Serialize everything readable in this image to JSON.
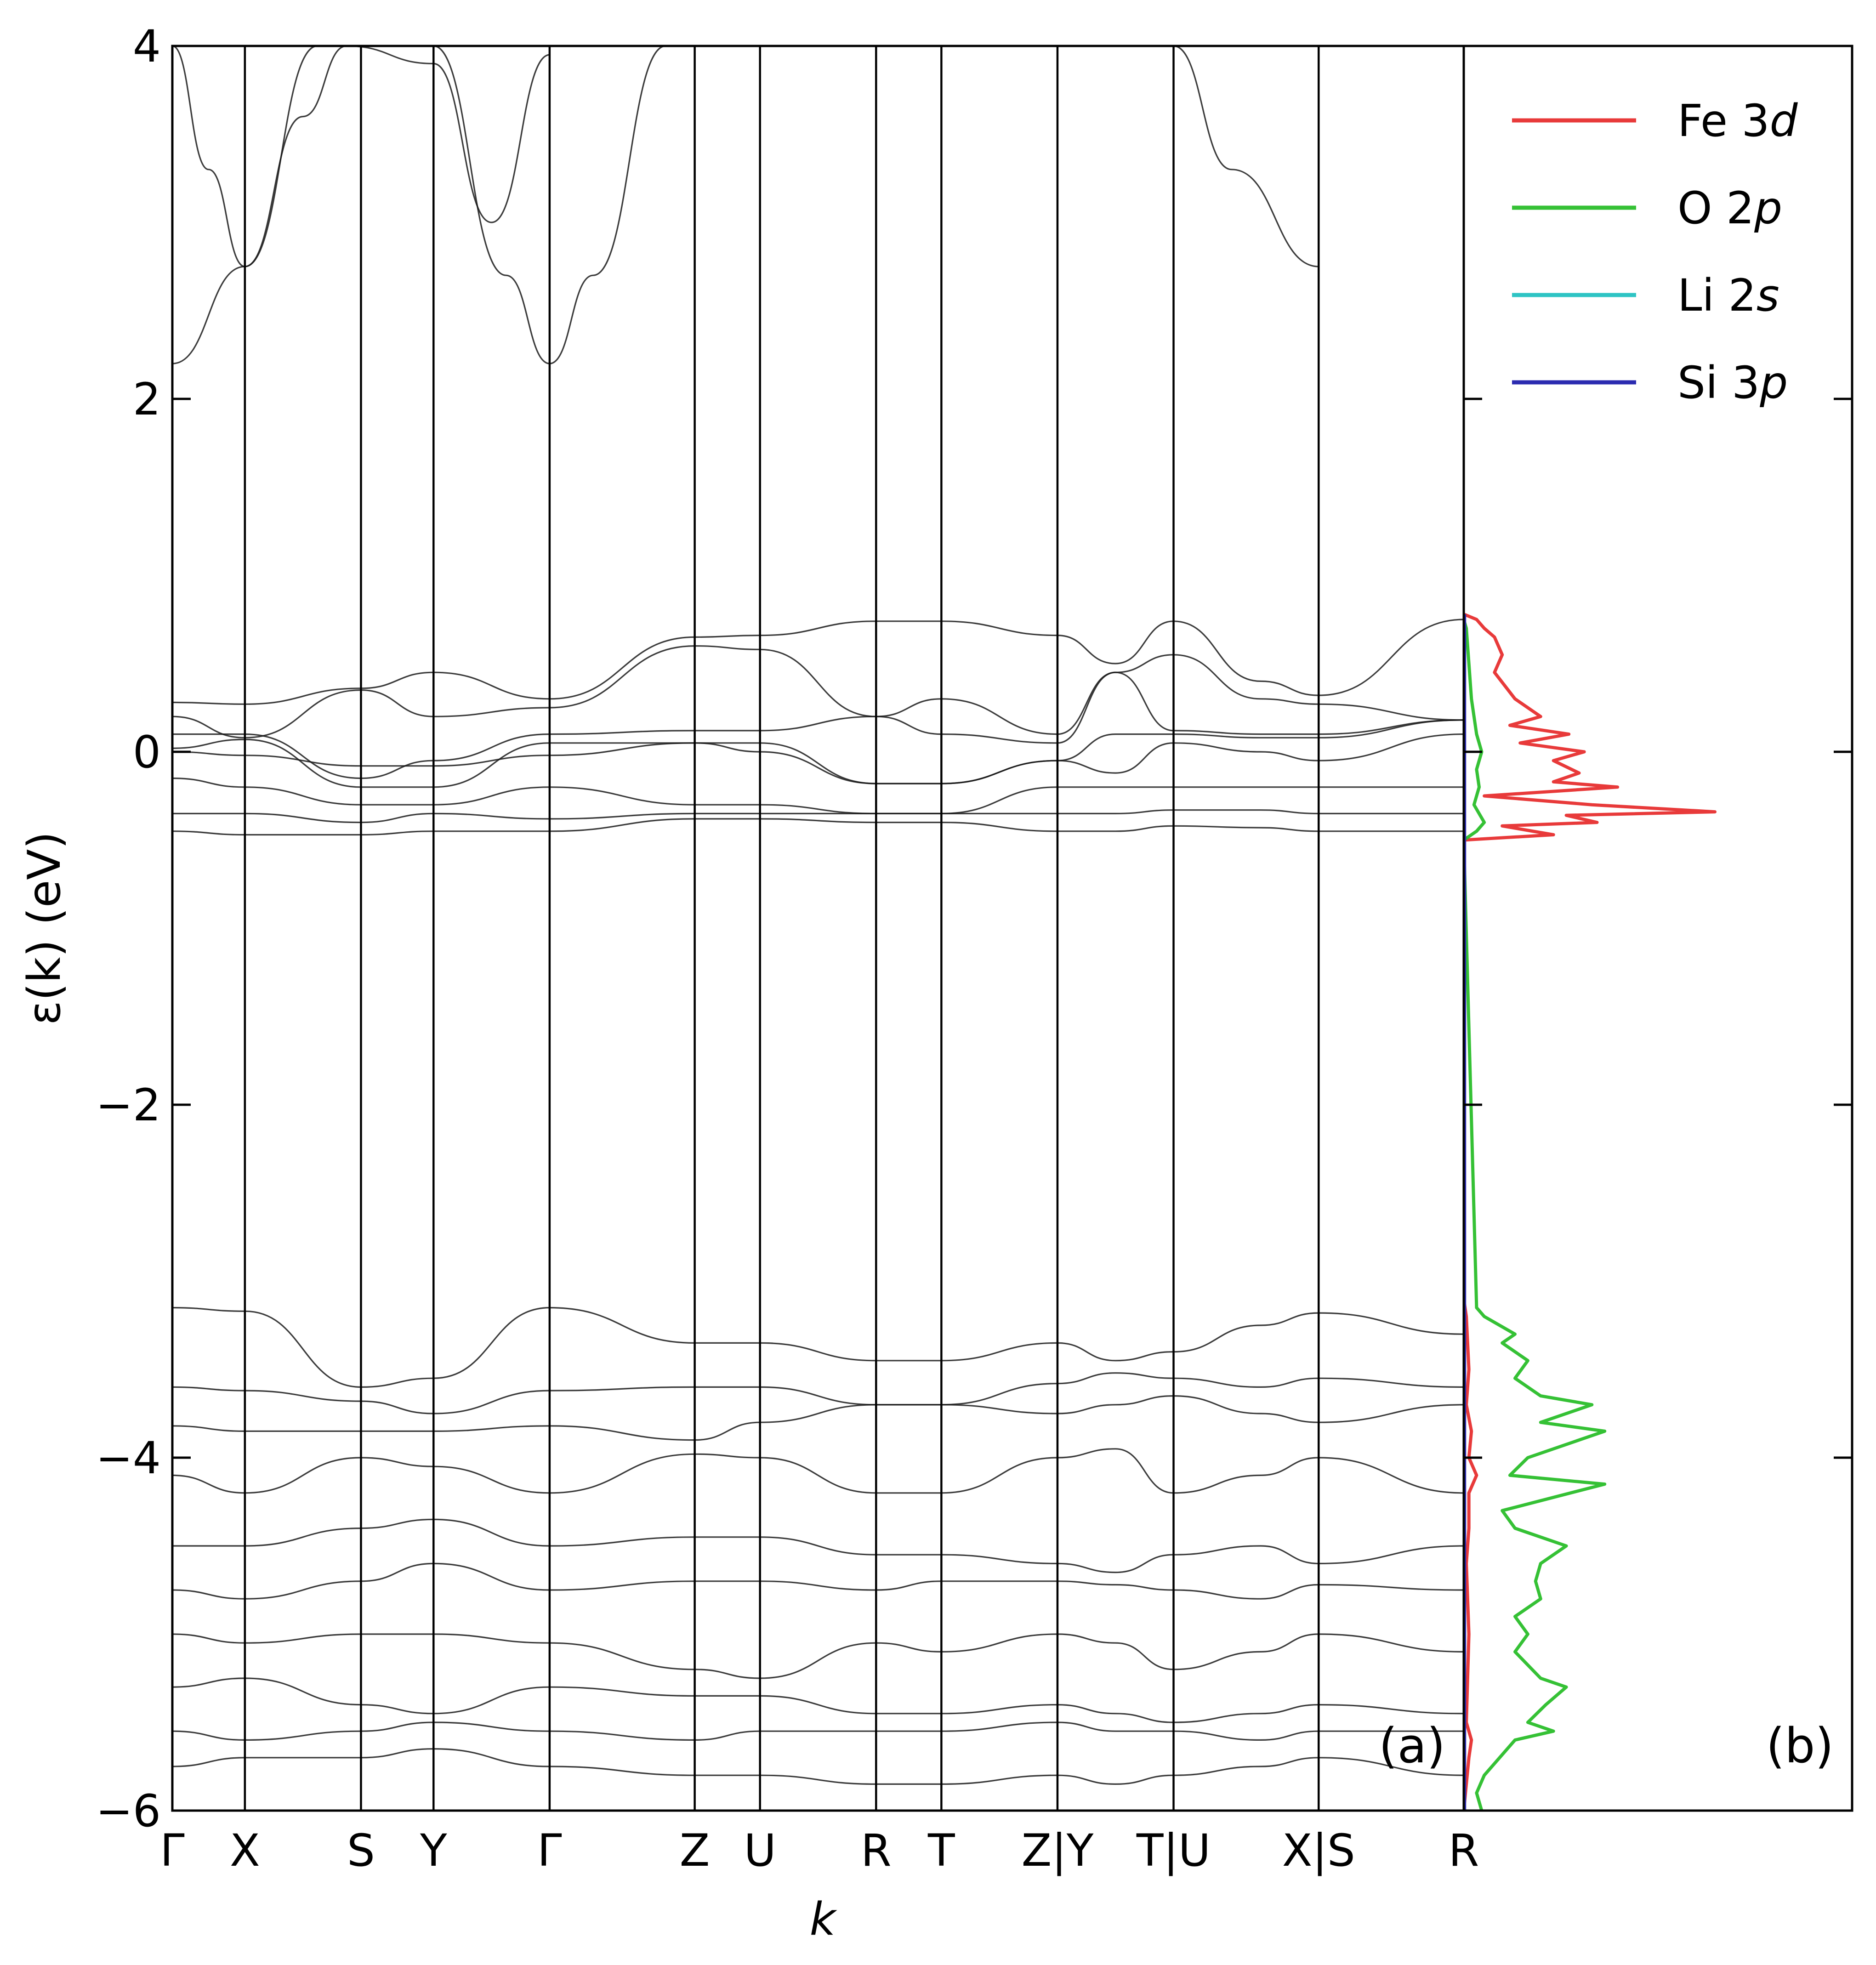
{
  "chart_data": [
    {
      "panel": "(a)",
      "type": "line",
      "title": "",
      "xlabel": "k",
      "ylabel": "ε(k) (eV)",
      "ylim": [
        -6,
        4
      ],
      "yticks": [
        -6,
        -4,
        -2,
        0,
        2,
        4
      ],
      "ytick_labels": [
        "−6",
        "−4",
        "−2",
        "0",
        "2",
        "4"
      ],
      "kpath": [
        {
          "label": "Γ",
          "k": 0.0
        },
        {
          "label": "X",
          "k": 0.5
        },
        {
          "label": "S",
          "k": 1.3
        },
        {
          "label": "Y",
          "k": 1.8
        },
        {
          "label": "Γ",
          "k": 2.6
        },
        {
          "label": "Z",
          "k": 3.6
        },
        {
          "label": "U",
          "k": 4.05
        },
        {
          "label": "R",
          "k": 4.85
        },
        {
          "label": "T",
          "k": 5.3
        },
        {
          "label": "Z|Y",
          "k": 6.1
        },
        {
          "label": "T|U",
          "k": 6.9
        },
        {
          "label": "X|S",
          "k": 7.9
        },
        {
          "label": "R",
          "k": 8.9
        }
      ],
      "bands_note": "dense band manifolds: conduction parabolas above 2.2 eV, Fe 3d manifold from -0.5 to 0.75 eV, O 2p manifold from -6 to -3.1 eV",
      "series": [
        {
          "name": "cb1",
          "k": [
            0,
            0.5,
            1.0,
            1.8,
            2.3,
            2.6,
            2.9,
            3.4,
            6.9,
            7.3,
            7.9
          ],
          "e": [
            2.2,
            2.75,
            4.0,
            4.0,
            2.7,
            2.2,
            2.7,
            4.0,
            4.0,
            3.3,
            2.75
          ]
        },
        {
          "name": "cb2",
          "k": [
            0,
            0.25,
            0.5,
            0.9,
            1.2,
            1.8,
            2.2,
            2.6
          ],
          "e": [
            4.0,
            3.3,
            2.75,
            3.6,
            4.0,
            3.9,
            3.0,
            3.95
          ]
        },
        {
          "name": "d1",
          "k": [
            0,
            0.5,
            1.3,
            1.8,
            2.6,
            3.6,
            4.05,
            4.85,
            5.3,
            6.1,
            6.5,
            6.9,
            7.5,
            7.9,
            8.9
          ],
          "e": [
            0.28,
            0.27,
            0.36,
            0.45,
            0.3,
            0.65,
            0.66,
            0.74,
            0.74,
            0.66,
            0.5,
            0.74,
            0.4,
            0.32,
            0.75
          ]
        },
        {
          "name": "d2",
          "k": [
            0,
            0.5,
            1.3,
            1.8,
            2.6,
            3.6,
            4.05,
            4.85,
            5.3,
            6.1,
            6.5,
            6.9,
            7.5,
            7.9,
            8.9
          ],
          "e": [
            0.2,
            0.08,
            0.35,
            0.2,
            0.25,
            0.6,
            0.58,
            0.2,
            0.3,
            0.1,
            0.45,
            0.55,
            0.3,
            0.27,
            0.18
          ]
        },
        {
          "name": "d3",
          "k": [
            0,
            0.5,
            1.3,
            1.8,
            2.6,
            3.6,
            4.05,
            4.85,
            5.3,
            6.1,
            6.5,
            6.9,
            7.5,
            7.9,
            8.9
          ],
          "e": [
            0.1,
            0.1,
            -0.15,
            -0.05,
            0.1,
            0.12,
            0.12,
            0.2,
            0.1,
            0.05,
            0.45,
            0.12,
            0.1,
            0.1,
            0.18
          ]
        },
        {
          "name": "d4",
          "k": [
            0,
            0.5,
            1.3,
            1.8,
            2.6,
            3.6,
            4.05,
            4.85,
            5.3,
            6.1,
            6.5,
            6.9,
            7.5,
            7.9,
            8.9
          ],
          "e": [
            0.02,
            0.07,
            -0.2,
            -0.2,
            0.05,
            0.05,
            0.05,
            -0.18,
            -0.18,
            -0.05,
            0.1,
            0.1,
            0.08,
            0.08,
            0.18
          ]
        },
        {
          "name": "d5",
          "k": [
            0,
            0.5,
            1.3,
            1.8,
            2.6,
            3.6,
            4.05,
            4.85,
            5.3,
            6.1,
            6.5,
            6.9,
            7.5,
            7.9,
            8.9
          ],
          "e": [
            0.0,
            -0.02,
            -0.08,
            -0.08,
            -0.02,
            0.05,
            0.0,
            -0.18,
            -0.18,
            -0.05,
            -0.12,
            0.05,
            0.0,
            -0.05,
            0.1
          ]
        },
        {
          "name": "d6",
          "k": [
            0,
            0.5,
            1.3,
            1.8,
            2.6,
            3.6,
            4.05,
            4.85,
            5.3,
            6.1,
            6.5,
            6.9,
            7.5,
            7.9,
            8.9
          ],
          "e": [
            -0.15,
            -0.2,
            -0.3,
            -0.3,
            -0.2,
            -0.3,
            -0.3,
            -0.35,
            -0.35,
            -0.2,
            -0.2,
            -0.2,
            -0.2,
            -0.2,
            -0.2
          ]
        },
        {
          "name": "d7",
          "k": [
            0,
            0.5,
            1.3,
            1.8,
            2.6,
            3.6,
            4.05,
            4.85,
            5.3,
            6.1,
            6.5,
            6.9,
            7.5,
            7.9,
            8.9
          ],
          "e": [
            -0.35,
            -0.35,
            -0.4,
            -0.35,
            -0.38,
            -0.35,
            -0.35,
            -0.35,
            -0.35,
            -0.35,
            -0.35,
            -0.33,
            -0.33,
            -0.35,
            -0.35
          ]
        },
        {
          "name": "d8",
          "k": [
            0,
            0.5,
            1.3,
            1.8,
            2.6,
            3.6,
            4.05,
            4.85,
            5.3,
            6.1,
            6.5,
            6.9,
            7.5,
            7.9,
            8.9
          ],
          "e": [
            -0.45,
            -0.47,
            -0.47,
            -0.45,
            -0.45,
            -0.38,
            -0.38,
            -0.4,
            -0.4,
            -0.45,
            -0.45,
            -0.42,
            -0.43,
            -0.45,
            -0.45
          ]
        },
        {
          "name": "p1",
          "k": [
            0,
            0.5,
            1.3,
            1.8,
            2.6,
            3.6,
            4.05,
            4.85,
            5.3,
            6.1,
            6.5,
            6.9,
            7.5,
            7.9,
            8.9
          ],
          "e": [
            -3.15,
            -3.17,
            -3.6,
            -3.55,
            -3.15,
            -3.35,
            -3.35,
            -3.45,
            -3.45,
            -3.35,
            -3.45,
            -3.4,
            -3.25,
            -3.18,
            -3.3
          ]
        },
        {
          "name": "p2",
          "k": [
            0,
            0.5,
            1.3,
            1.8,
            2.6,
            3.6,
            4.05,
            4.85,
            5.3,
            6.1,
            6.5,
            6.9,
            7.5,
            7.9,
            8.9
          ],
          "e": [
            -3.6,
            -3.62,
            -3.68,
            -3.75,
            -3.62,
            -3.6,
            -3.6,
            -3.7,
            -3.7,
            -3.58,
            -3.52,
            -3.55,
            -3.6,
            -3.55,
            -3.6
          ]
        },
        {
          "name": "p3",
          "k": [
            0,
            0.5,
            1.3,
            1.8,
            2.6,
            3.6,
            4.05,
            4.85,
            5.3,
            6.1,
            6.5,
            6.9,
            7.5,
            7.9,
            8.9
          ],
          "e": [
            -3.82,
            -3.85,
            -3.85,
            -3.85,
            -3.82,
            -3.9,
            -3.8,
            -3.7,
            -3.7,
            -3.75,
            -3.7,
            -3.65,
            -3.75,
            -3.8,
            -3.7
          ]
        },
        {
          "name": "p4",
          "k": [
            0,
            0.5,
            1.3,
            1.8,
            2.6,
            3.6,
            4.05,
            4.85,
            5.3,
            6.1,
            6.5,
            6.9,
            7.5,
            7.9,
            8.9
          ],
          "e": [
            -4.1,
            -4.2,
            -4.0,
            -4.05,
            -4.2,
            -3.98,
            -4.0,
            -4.2,
            -4.2,
            -4.0,
            -3.95,
            -4.2,
            -4.1,
            -4.0,
            -4.2
          ]
        },
        {
          "name": "p5",
          "k": [
            0,
            0.5,
            1.3,
            1.8,
            2.6,
            3.6,
            4.05,
            4.85,
            5.3,
            6.1,
            6.5,
            6.9,
            7.5,
            7.9,
            8.9
          ],
          "e": [
            -4.5,
            -4.5,
            -4.4,
            -4.35,
            -4.5,
            -4.45,
            -4.45,
            -4.55,
            -4.55,
            -4.6,
            -4.65,
            -4.55,
            -4.5,
            -4.6,
            -4.5
          ]
        },
        {
          "name": "p6",
          "k": [
            0,
            0.5,
            1.3,
            1.8,
            2.6,
            3.6,
            4.05,
            4.85,
            5.3,
            6.1,
            6.5,
            6.9,
            7.5,
            7.9,
            8.9
          ],
          "e": [
            -4.75,
            -4.8,
            -4.7,
            -4.6,
            -4.75,
            -4.7,
            -4.7,
            -4.75,
            -4.7,
            -4.7,
            -4.72,
            -4.75,
            -4.8,
            -4.72,
            -4.75
          ]
        },
        {
          "name": "p7",
          "k": [
            0,
            0.5,
            1.3,
            1.8,
            2.6,
            3.6,
            4.05,
            4.85,
            5.3,
            6.1,
            6.5,
            6.9,
            7.5,
            7.9,
            8.9
          ],
          "e": [
            -5.0,
            -5.05,
            -5.0,
            -5.0,
            -5.05,
            -5.2,
            -5.25,
            -5.05,
            -5.1,
            -5.0,
            -5.05,
            -5.2,
            -5.1,
            -5.0,
            -5.1
          ]
        },
        {
          "name": "p8",
          "k": [
            0,
            0.5,
            1.3,
            1.8,
            2.6,
            3.6,
            4.05,
            4.85,
            5.3,
            6.1,
            6.5,
            6.9,
            7.5,
            7.9,
            8.9
          ],
          "e": [
            -5.3,
            -5.25,
            -5.4,
            -5.45,
            -5.3,
            -5.35,
            -5.35,
            -5.45,
            -5.45,
            -5.4,
            -5.45,
            -5.5,
            -5.45,
            -5.4,
            -5.45
          ]
        },
        {
          "name": "p9",
          "k": [
            0,
            0.5,
            1.3,
            1.8,
            2.6,
            3.6,
            4.05,
            4.85,
            5.3,
            6.1,
            6.5,
            6.9,
            7.5,
            7.9,
            8.9
          ],
          "e": [
            -5.55,
            -5.6,
            -5.55,
            -5.5,
            -5.55,
            -5.6,
            -5.55,
            -5.55,
            -5.55,
            -5.5,
            -5.55,
            -5.55,
            -5.6,
            -5.55,
            -5.55
          ]
        },
        {
          "name": "p10",
          "k": [
            0,
            0.5,
            1.3,
            1.8,
            2.6,
            3.6,
            4.05,
            4.85,
            5.3,
            6.1,
            6.5,
            6.9,
            7.5,
            7.9,
            8.9
          ],
          "e": [
            -5.75,
            -5.7,
            -5.7,
            -5.65,
            -5.75,
            -5.8,
            -5.8,
            -5.85,
            -5.85,
            -5.8,
            -5.85,
            -5.8,
            -5.75,
            -5.7,
            -5.8
          ]
        }
      ]
    },
    {
      "panel": "(b)",
      "type": "line",
      "title": "",
      "ylim": [
        -6,
        4
      ],
      "legend_position": "top-right",
      "legend": [
        {
          "name": "Fe 3",
          "suffix": "d",
          "color": "#e83a3a"
        },
        {
          "name": "O  2",
          "suffix": "p",
          "color": "#35c135"
        },
        {
          "name": "Li 2",
          "suffix": "s",
          "color": "#2ec4c4"
        },
        {
          "name": "Si 3",
          "suffix": "p",
          "color": "#2b2bb0"
        }
      ],
      "dos_max": 1.0,
      "series": [
        {
          "name": "Fe 3d",
          "color": "#e83a3a",
          "e": [
            -6,
            -5.7,
            -5.6,
            -5.5,
            -5.0,
            -4.6,
            -4.4,
            -4.2,
            -4.1,
            -4.0,
            -3.85,
            -3.7,
            -3.5,
            -3.2,
            -3.1,
            -0.5,
            -0.47,
            -0.42,
            -0.4,
            -0.36,
            -0.34,
            -0.3,
            -0.25,
            -0.2,
            -0.17,
            -0.12,
            -0.05,
            0.0,
            0.05,
            0.1,
            0.15,
            0.2,
            0.3,
            0.45,
            0.55,
            0.65,
            0.7,
            0.75,
            0.78
          ],
          "dos": [
            0.0,
            0.02,
            0.03,
            0.01,
            0.02,
            0.01,
            0.02,
            0.02,
            0.05,
            0.02,
            0.03,
            0.01,
            0.02,
            0.01,
            0.0,
            0.0,
            0.35,
            0.15,
            0.52,
            0.4,
            0.98,
            0.5,
            0.08,
            0.6,
            0.35,
            0.45,
            0.35,
            0.47,
            0.22,
            0.41,
            0.18,
            0.3,
            0.2,
            0.12,
            0.15,
            0.12,
            0.08,
            0.05,
            0.0
          ]
        },
        {
          "name": "O 2p",
          "color": "#35c135",
          "e": [
            -6,
            -5.9,
            -5.8,
            -5.6,
            -5.55,
            -5.5,
            -5.4,
            -5.3,
            -5.25,
            -5.1,
            -5.0,
            -4.9,
            -4.8,
            -4.7,
            -4.6,
            -4.5,
            -4.45,
            -4.4,
            -4.3,
            -4.15,
            -4.1,
            -4.0,
            -3.9,
            -3.85,
            -3.8,
            -3.7,
            -3.65,
            -3.55,
            -3.45,
            -3.35,
            -3.3,
            -3.2,
            -3.15,
            -0.5,
            -0.45,
            -0.4,
            -0.3,
            -0.2,
            -0.1,
            0.0,
            0.1,
            0.2,
            0.3,
            0.5,
            0.7,
            0.75
          ],
          "dos": [
            0.07,
            0.05,
            0.08,
            0.2,
            0.35,
            0.25,
            0.32,
            0.4,
            0.3,
            0.2,
            0.25,
            0.2,
            0.3,
            0.28,
            0.3,
            0.4,
            0.3,
            0.2,
            0.15,
            0.55,
            0.18,
            0.25,
            0.45,
            0.55,
            0.3,
            0.5,
            0.3,
            0.2,
            0.25,
            0.15,
            0.2,
            0.08,
            0.05,
            0.0,
            0.05,
            0.08,
            0.04,
            0.06,
            0.05,
            0.07,
            0.05,
            0.04,
            0.03,
            0.02,
            0.01,
            0.0
          ]
        },
        {
          "name": "Li 2s",
          "color": "#2ec4c4",
          "e": [
            -6,
            0.78
          ],
          "dos": [
            0.0,
            0.0
          ]
        },
        {
          "name": "Si 3p",
          "color": "#2b2bb0",
          "e": [
            -6,
            0.78
          ],
          "dos": [
            0.003,
            0.003
          ]
        }
      ]
    }
  ]
}
